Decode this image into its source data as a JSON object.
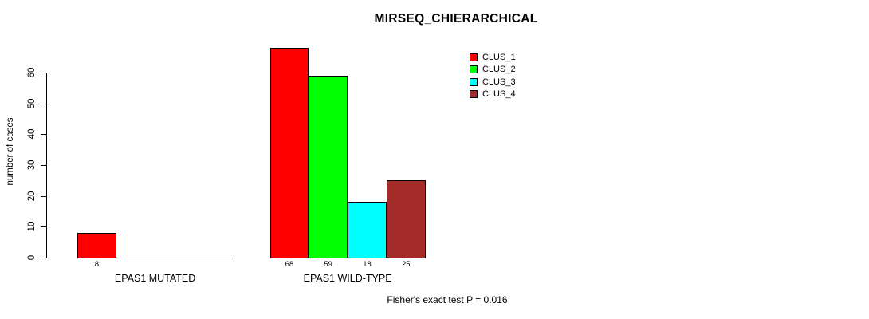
{
  "chart_data": {
    "type": "bar",
    "title": "MIRSEQ_CHIERARCHICAL",
    "ylabel": "number of cases",
    "footer": "Fisher's exact test P = 0.016",
    "ylim": [
      0,
      60
    ],
    "yticks": [
      0,
      10,
      20,
      30,
      40,
      50,
      60
    ],
    "grid": false,
    "legend_position": "top-right",
    "bar_value_labels_shown": true,
    "categories": [
      "EPAS1 MUTATED",
      "EPAS1 WILD-TYPE"
    ],
    "series": [
      {
        "name": "CLUS_1",
        "color": "#FF0000",
        "values": [
          8,
          68
        ]
      },
      {
        "name": "CLUS_2",
        "color": "#00FF00",
        "values": [
          0,
          59
        ]
      },
      {
        "name": "CLUS_3",
        "color": "#00FFFF",
        "values": [
          0,
          18
        ]
      },
      {
        "name": "CLUS_4",
        "color": "#A52A2A",
        "values": [
          0,
          25
        ]
      }
    ],
    "shown_bar_labels": {
      "EPAS1 MUTATED": [
        "8"
      ],
      "EPAS1 WILD-TYPE": [
        "68",
        "59",
        "18",
        "25"
      ]
    }
  }
}
